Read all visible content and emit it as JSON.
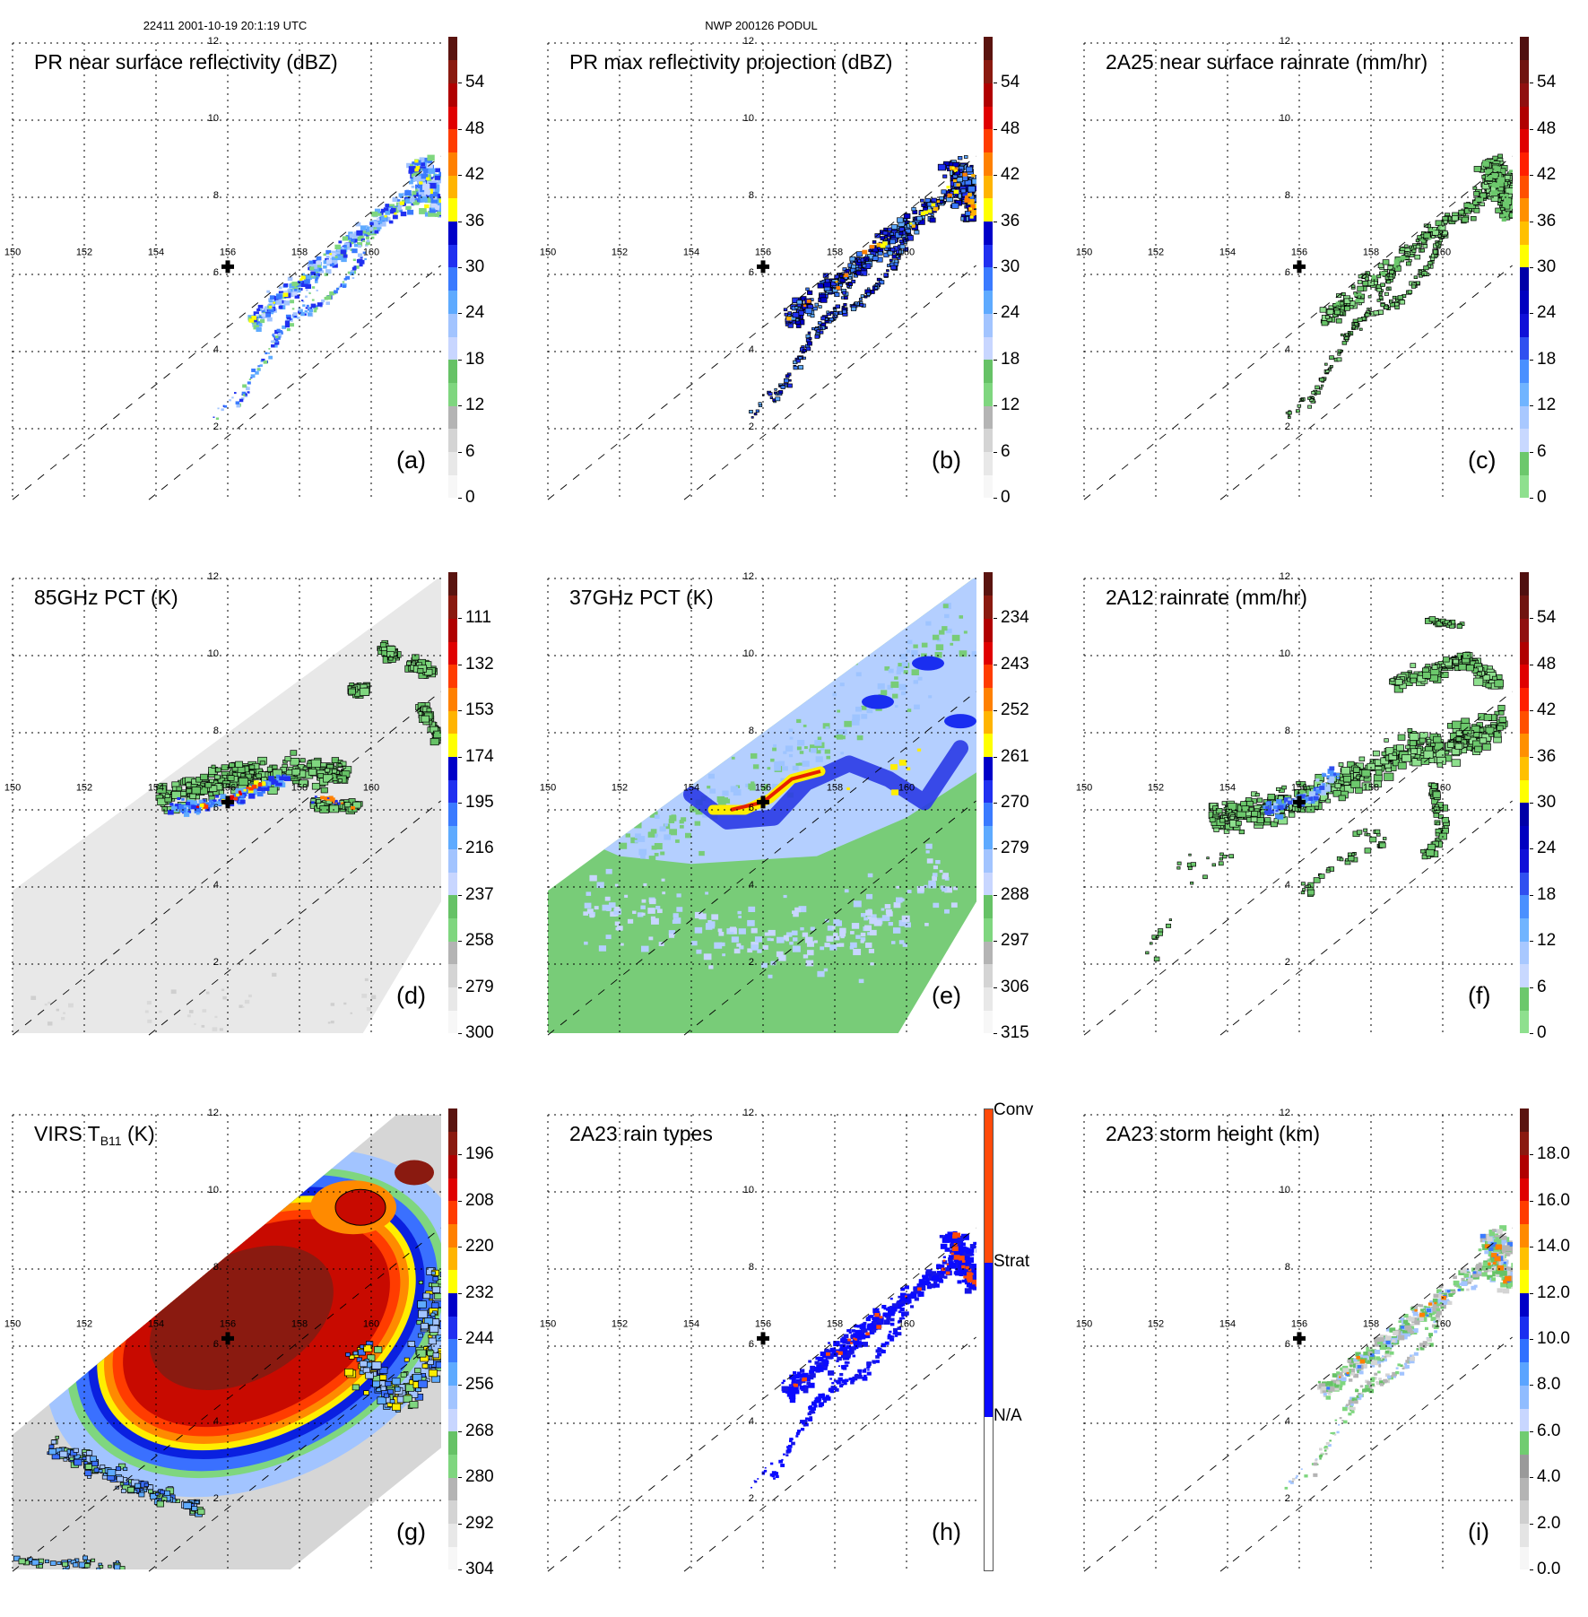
{
  "header": {
    "left": "22411 2001-10-19 20:1:19 UTC",
    "center": "NWP 200126 PODUL"
  },
  "axes": {
    "lon_labels": [
      "150",
      "152",
      "154",
      "156",
      "158",
      "160"
    ],
    "lat_labels": [
      "12",
      "10",
      "8",
      "6",
      "4",
      "2"
    ],
    "storm_center_marker": "cross-icon"
  },
  "panels": [
    {
      "id": "a",
      "title": "PR near surface reflectivity (dBZ)",
      "tag": "(a)",
      "colorbar": {
        "type": "continuous",
        "labels": [
          "0",
          "6",
          "12",
          "18",
          "24",
          "30",
          "36",
          "42",
          "48",
          "54"
        ],
        "palette": "refl"
      }
    },
    {
      "id": "b",
      "title": "PR max reflectivity projection (dBZ)",
      "tag": "(b)",
      "colorbar": {
        "type": "continuous",
        "labels": [
          "0",
          "6",
          "12",
          "18",
          "24",
          "30",
          "36",
          "42",
          "48",
          "54"
        ],
        "palette": "refl"
      }
    },
    {
      "id": "c",
      "title": "2A25 near surface rainrate (mm/hr)",
      "tag": "(c)",
      "colorbar": {
        "type": "continuous",
        "labels": [
          "0",
          "6",
          "12",
          "18",
          "24",
          "30",
          "36",
          "42",
          "48",
          "54"
        ],
        "palette": "rain"
      }
    },
    {
      "id": "d",
      "title": "85GHz PCT (K)",
      "tag": "(d)",
      "colorbar": {
        "type": "continuous",
        "labels": [
          "300",
          "279",
          "258",
          "237",
          "216",
          "195",
          "174",
          "153",
          "132",
          "111"
        ],
        "palette": "refl"
      }
    },
    {
      "id": "e",
      "title": "37GHz PCT (K)",
      "tag": "(e)",
      "colorbar": {
        "type": "continuous",
        "labels": [
          "315",
          "306",
          "297",
          "288",
          "279",
          "270",
          "261",
          "252",
          "243",
          "234"
        ],
        "palette": "refl"
      }
    },
    {
      "id": "f",
      "title": "2A12 rainrate (mm/hr)",
      "tag": "(f)",
      "colorbar": {
        "type": "continuous",
        "labels": [
          "0",
          "6",
          "12",
          "18",
          "24",
          "30",
          "36",
          "42",
          "48",
          "54"
        ],
        "palette": "rain"
      }
    },
    {
      "id": "g",
      "title": "VIRS T",
      "title_sub": "B11",
      "title_suffix": " (K)",
      "tag": "(g)",
      "colorbar": {
        "type": "continuous",
        "labels": [
          "304",
          "292",
          "280",
          "268",
          "256",
          "244",
          "232",
          "220",
          "208",
          "196"
        ],
        "palette": "refl"
      }
    },
    {
      "id": "h",
      "title": "2A23 rain types",
      "tag": "(h)",
      "colorbar": {
        "type": "categorical",
        "labels": [
          "N/A",
          "Strat",
          "Conv"
        ],
        "colors": [
          "#ffffff",
          "#0a0aff",
          "#ff4a0a"
        ]
      }
    },
    {
      "id": "i",
      "title": "2A23 storm height (km)",
      "tag": "(i)",
      "colorbar": {
        "type": "continuous",
        "labels": [
          "0.0",
          "2.0",
          "4.0",
          "6.0",
          "8.0",
          "10.0",
          "12.0",
          "14.0",
          "16.0",
          "18.0"
        ],
        "palette": "height"
      }
    }
  ],
  "palettes": {
    "refl": [
      "#f7f7f7",
      "#e8e8e8",
      "#d4d4d4",
      "#b4b4b4",
      "#7fd67f",
      "#66c266",
      "#c8d6ff",
      "#a2c4ff",
      "#5eaaff",
      "#3a7aff",
      "#2030f0",
      "#0000c8",
      "#ffff00",
      "#ffb400",
      "#ff8000",
      "#ff3c00",
      "#e00000",
      "#b00000",
      "#8a1a10",
      "#5a1410"
    ],
    "rain": [
      "#8ee08e",
      "#6cc86c",
      "#c8d8ff",
      "#a8c8ff",
      "#70b4ff",
      "#4a90ff",
      "#3050f0",
      "#1010d8",
      "#0000c0",
      "#0000a8",
      "#ffff00",
      "#ffc000",
      "#ff9000",
      "#ff5000",
      "#ff2000",
      "#e00000",
      "#b00000",
      "#901010",
      "#701410",
      "#501010"
    ],
    "height": [
      "#f6f6f6",
      "#e4e4e4",
      "#cfcfcf",
      "#b4b4b4",
      "#9a9a9a",
      "#70cc70",
      "#c8d6ff",
      "#90bcff",
      "#5aa4ff",
      "#3070ff",
      "#1a2ef0",
      "#0000c8",
      "#ffff00",
      "#ffc000",
      "#ff8a00",
      "#ff3c00",
      "#e00000",
      "#b00000",
      "#8a1a10",
      "#5a1410"
    ]
  }
}
